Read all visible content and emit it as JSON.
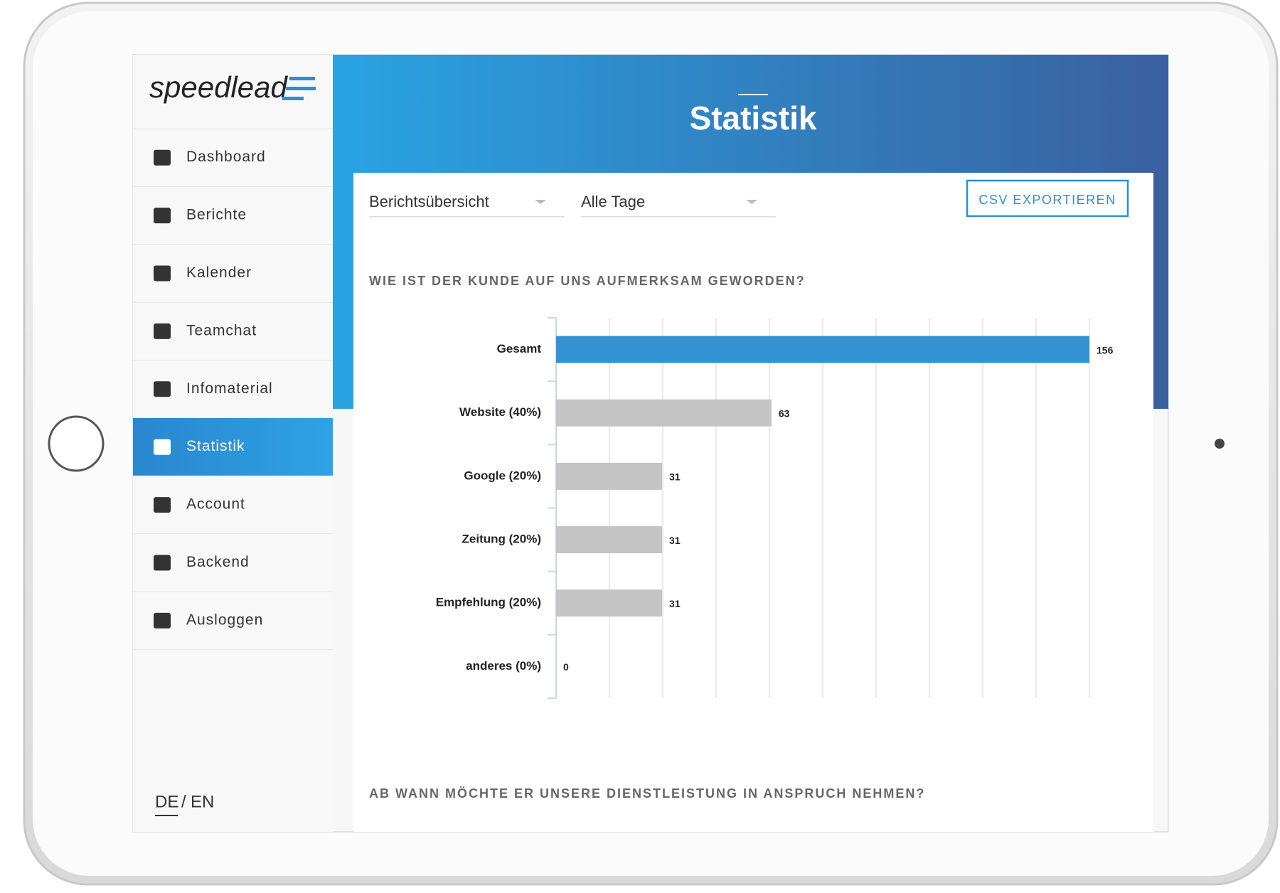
{
  "logo": "speedlead",
  "nav": [
    "Dashboard",
    "Berichte",
    "Kalender",
    "Teamchat",
    "Infomaterial",
    "Statistik",
    "Account",
    "Backend",
    "Ausloggen"
  ],
  "active_nav": 5,
  "language": {
    "de": "DE",
    "separator": "/",
    "en": "EN"
  },
  "header": {
    "title": "Statistik"
  },
  "filters": {
    "report": "Berichtsübersicht",
    "days": "Alle Tage",
    "export": "CSV EXPORTIEREN"
  },
  "questions": [
    "WIE IST DER KUNDE AUF UNS AUFMERKSAM GEWORDEN?",
    "AB WANN MÖCHTE ER UNSERE DIENSTLEISTUNG IN ANSPRUCH NEHMEN?"
  ],
  "chart": {
    "type": "bar",
    "orientation": "horizontal",
    "categories": [
      "Gesamt",
      "Website (40%)",
      "Google (20%)",
      "Zeitung (20%)",
      "Empfehlung (20%)",
      "anderes (0%)"
    ],
    "values": [
      156,
      63,
      31,
      31,
      31,
      0
    ],
    "colors": [
      "#3492d3",
      "#c4c4c4",
      "#c4c4c4",
      "#c4c4c4",
      "#c4c4c4",
      "#c4c4c4"
    ],
    "xlim": [
      0,
      156
    ],
    "xticks": [
      0,
      15.6,
      31.2,
      46.8,
      62.4,
      78,
      93.6,
      109.2,
      124.8,
      140.4,
      156
    ],
    "grid": true
  }
}
